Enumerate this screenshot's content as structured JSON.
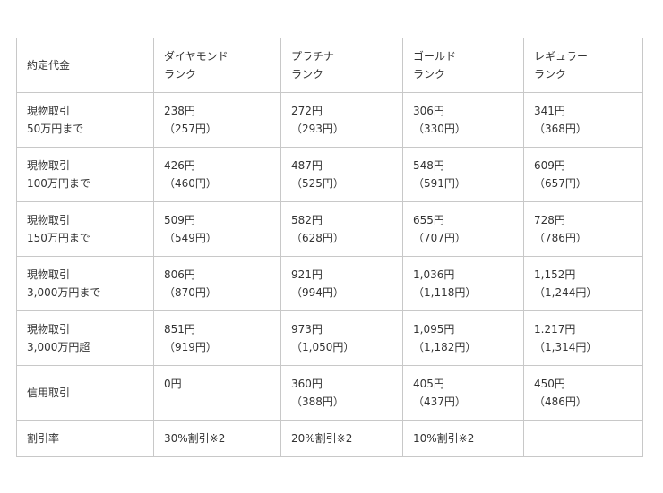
{
  "header": {
    "label": "約定代金",
    "ranks": [
      [
        "ダイヤモンド",
        "ランク"
      ],
      [
        "プラチナ",
        "ランク"
      ],
      [
        "ゴールド",
        "ランク"
      ],
      [
        "レギュラー",
        "ランク"
      ]
    ]
  },
  "rows": [
    {
      "label": [
        "現物取引",
        "50万円まで"
      ],
      "cells": [
        [
          "238円",
          "（257円）"
        ],
        [
          "272円",
          "（293円）"
        ],
        [
          "306円",
          "（330円）"
        ],
        [
          "341円",
          "（368円）"
        ]
      ]
    },
    {
      "label": [
        "現物取引",
        "100万円まで"
      ],
      "cells": [
        [
          "426円",
          "（460円）"
        ],
        [
          "487円",
          "（525円）"
        ],
        [
          "548円",
          "（591円）"
        ],
        [
          "609円",
          "（657円）"
        ]
      ]
    },
    {
      "label": [
        "現物取引",
        "150万円まで"
      ],
      "cells": [
        [
          "509円",
          "（549円）"
        ],
        [
          "582円",
          "（628円）"
        ],
        [
          "655円",
          "（707円）"
        ],
        [
          "728円",
          "（786円）"
        ]
      ]
    },
    {
      "label": [
        "現物取引",
        "3,000万円まで"
      ],
      "cells": [
        [
          "806円",
          "（870円）"
        ],
        [
          "921円",
          "（994円）"
        ],
        [
          "1,036円",
          "（1,118円）"
        ],
        [
          "1,152円",
          "（1,244円）"
        ]
      ]
    },
    {
      "label": [
        "現物取引",
        "3,000万円超"
      ],
      "cells": [
        [
          "851円",
          "（919円）"
        ],
        [
          "973円",
          "（1,050円）"
        ],
        [
          "1,095円",
          "（1,182円）"
        ],
        [
          "1.217円",
          "（1,314円）"
        ]
      ]
    },
    {
      "label": [
        "信用取引",
        ""
      ],
      "cells": [
        [
          "0円",
          ""
        ],
        [
          "360円",
          "（388円）"
        ],
        [
          "405円",
          "（437円）"
        ],
        [
          "450円",
          "（486円）"
        ]
      ]
    }
  ],
  "discount": {
    "label": "割引率",
    "cells": [
      "30%割引※2",
      "20%割引※2",
      "10%割引※2",
      ""
    ]
  }
}
